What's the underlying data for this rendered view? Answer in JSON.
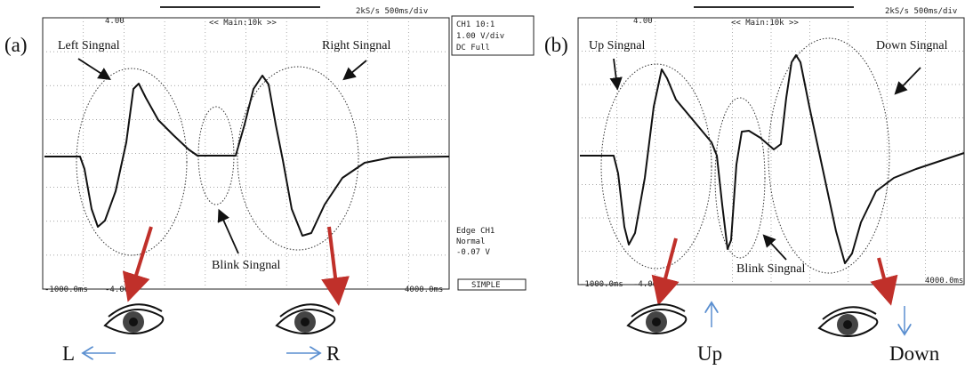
{
  "panels": [
    {
      "label": "(a)",
      "top_scale": "4.00",
      "timebase": "<< Main:10k >>",
      "rate": "2kS/s 500ms/div",
      "bottom_scale": "-4.00",
      "x_start": "-1000.0ms",
      "x_end": "4000.0ms",
      "annotations": [
        "Left Singnal",
        "Right Singnal",
        "Blink Singnal"
      ],
      "direction_labels": [
        "L",
        "R"
      ],
      "settings": [
        "CH1 10:1",
        "1.00 V/div",
        "DC Full"
      ],
      "trigger": [
        "Edge CH1",
        "Normal",
        "-0.07 V"
      ],
      "mode": "SIMPLE"
    },
    {
      "label": "(b)",
      "top_scale": "4.00",
      "timebase": "<< Main:10k >>",
      "rate": "2kS/s 500ms/div",
      "bottom_scale": "-4.00",
      "x_start": "-1000.0ms",
      "x_end": "4000.0ms",
      "annotations": [
        "Up Singnal",
        "Down Singnal",
        "Blink Singnal"
      ],
      "direction_labels": [
        "Up",
        "Down"
      ]
    }
  ]
}
